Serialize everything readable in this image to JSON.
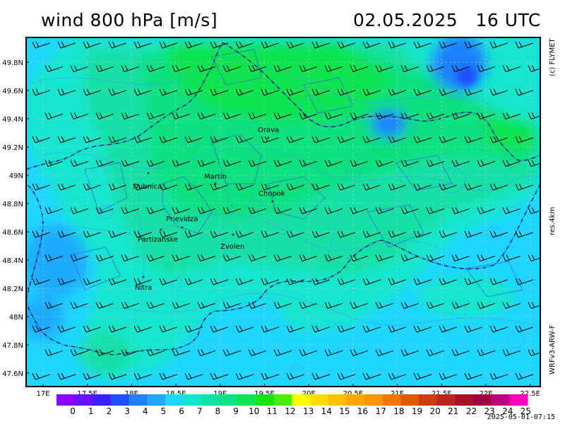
{
  "header": {
    "title": "wind 800 hPa [m/s]",
    "datetime": "02.05.2025   16 UTC"
  },
  "side_labels": {
    "copyright": "(c) FLYMET",
    "resolution": "res.4km",
    "model": "WRFv3-ARW-F"
  },
  "footer": {
    "run_time": "2025-05-01-07:15"
  },
  "axes": {
    "lat_labels": [
      "49.8N",
      "49.6N",
      "49.4N",
      "49.2N",
      "49N",
      "48.8N",
      "48.6N",
      "48.4N",
      "48.2N",
      "48N",
      "47.8N",
      "47.6N"
    ],
    "lon_labels": [
      "17E",
      "17.5E",
      "18E",
      "18.5E",
      "19E",
      "19.5E",
      "20E",
      "20.5E",
      "21E",
      "21.5E",
      "22E",
      "22.5E"
    ]
  },
  "places": [
    {
      "name": "Orava"
    },
    {
      "name": "Martin"
    },
    {
      "name": "Dubnica"
    },
    {
      "name": "Chopok"
    },
    {
      "name": "Prievidza"
    },
    {
      "name": "Partizanske"
    },
    {
      "name": "Zvolen"
    },
    {
      "name": "Nitra"
    }
  ],
  "legend": {
    "values": [
      "0",
      "1",
      "2",
      "3",
      "4",
      "5",
      "6",
      "7",
      "8",
      "9",
      "10",
      "11",
      "12",
      "13",
      "14",
      "15",
      "16",
      "17",
      "18",
      "19",
      "20",
      "21",
      "22",
      "23",
      "24",
      "25"
    ],
    "colors": [
      "#8f00ff",
      "#6a10ff",
      "#3a20ff",
      "#1f4fff",
      "#1e80ff",
      "#1eaaff",
      "#1ed6ff",
      "#12e6cd",
      "#14e0a4",
      "#10e07f",
      "#10e450",
      "#14e614",
      "#46f000",
      "#ffff00",
      "#ffdb00",
      "#ffc000",
      "#ffa800",
      "#ff9400",
      "#f07800",
      "#e05c00",
      "#cf3c10",
      "#be2320",
      "#aa0f28",
      "#a00040",
      "#c0007a",
      "#ff00c0"
    ]
  }
}
